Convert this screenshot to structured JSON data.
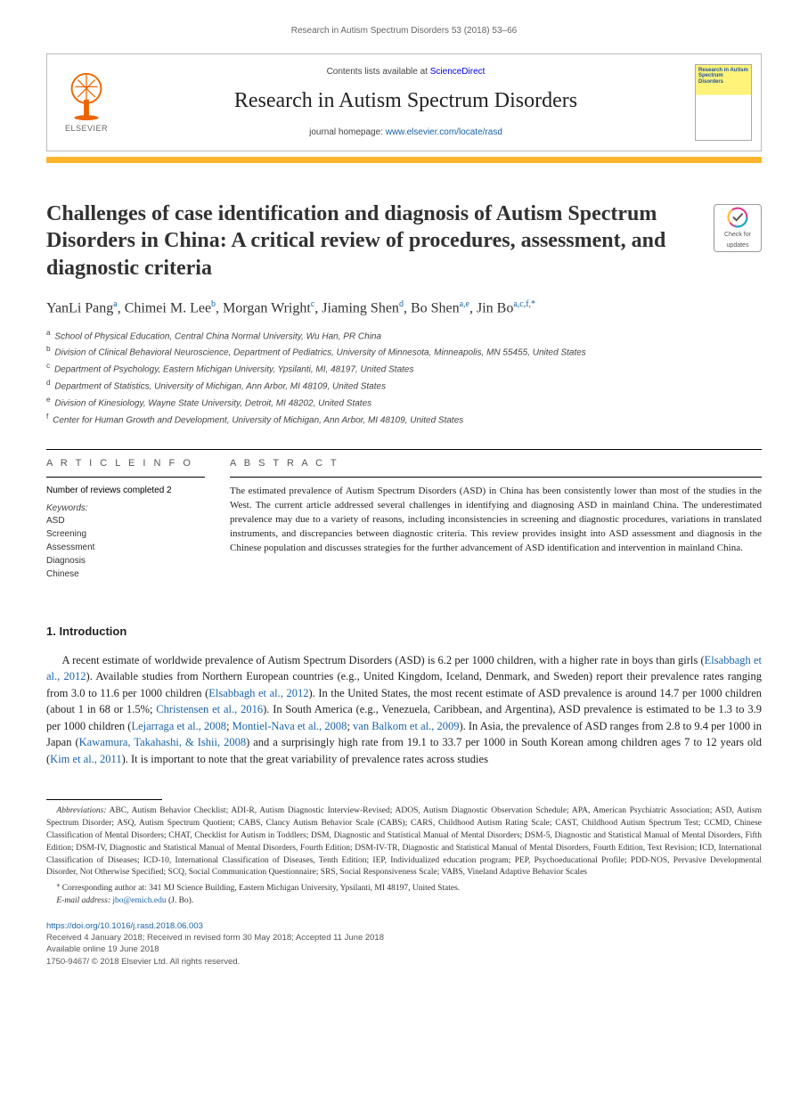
{
  "running_head": "Research in Autism Spectrum Disorders 53 (2018) 53–66",
  "masthead": {
    "publisher": "ELSEVIER",
    "contents_prefix": "Contents lists available at ",
    "contents_link": "ScienceDirect",
    "journal_name": "Research in Autism Spectrum Disorders",
    "homepage_prefix": "journal homepage: ",
    "homepage_link": "www.elsevier.com/locate/rasd",
    "cover_title": "Research in Autism Spectrum Disorders",
    "accent_color": "#fbb52a",
    "logo_color": "#ec6500"
  },
  "crossmark": {
    "line1": "Check for",
    "line2": "updates"
  },
  "title": "Challenges of case identification and diagnosis of Autism Spectrum Disorders in China: A critical review of procedures, assessment, and diagnostic criteria",
  "authors_html": "YanLi Pang<sup>a</sup>, Chimei M. Lee<sup>b</sup>, Morgan Wright<sup>c</sup>, Jiaming Shen<sup>d</sup>, Bo Shen<sup>a,e</sup>, Jin Bo<sup>a,c,f,*</sup>",
  "affiliations": [
    {
      "key": "a",
      "text": "School of Physical Education, Central China Normal University, Wu Han, PR China"
    },
    {
      "key": "b",
      "text": "Division of Clinical Behavioral Neuroscience, Department of Pediatrics, University of Minnesota, Minneapolis, MN 55455, United States"
    },
    {
      "key": "c",
      "text": "Department of Psychology, Eastern Michigan University, Ypsilanti, MI, 48197, United States"
    },
    {
      "key": "d",
      "text": "Department of Statistics, University of Michigan, Ann Arbor, MI 48109, United States"
    },
    {
      "key": "e",
      "text": "Division of Kinesiology, Wayne State University, Detroit, MI 48202, United States"
    },
    {
      "key": "f",
      "text": "Center for Human Growth and Development, University of Michigan, Ann Arbor, MI 48109, United States"
    }
  ],
  "article_info": {
    "head": "A R T I C L E  I N F O",
    "reviews_line": "Number of reviews completed 2",
    "keywords_head": "Keywords:",
    "keywords": [
      "ASD",
      "Screening",
      "Assessment",
      "Diagnosis",
      "Chinese"
    ]
  },
  "abstract": {
    "head": "A B S T R A C T",
    "text": "The estimated prevalence of Autism Spectrum Disorders (ASD) in China has been consistently lower than most of the studies in the West. The current article addressed several challenges in identifying and diagnosing ASD in mainland China. The underestimated prevalence may due to a variety of reasons, including inconsistencies in screening and diagnostic procedures, variations in translated instruments, and discrepancies between diagnostic criteria. This review provides insight into ASD assessment and diagnosis in the Chinese population and discusses strategies for the further advancement of ASD identification and intervention in mainland China."
  },
  "section1_head": "1. Introduction",
  "intro_html": "A recent estimate of worldwide prevalence of Autism Spectrum Disorders (ASD) is 6.2 per 1000 children, with a higher rate in boys than girls (<span class='cite'>Elsabbagh et al., 2012</span>). Available studies from Northern European countries (e.g., United Kingdom, Iceland, Denmark, and Sweden) report their prevalence rates ranging from 3.0 to 11.6 per 1000 children (<span class='cite'>Elsabbagh et al., 2012</span>). In the United States, the most recent estimate of ASD prevalence is around 14.7 per 1000 children (about 1 in 68 or 1.5%; <span class='cite'>Christensen et al., 2016</span>). In South America (e.g., Venezuela, Caribbean, and Argentina), ASD prevalence is estimated to be 1.3 to 3.9 per 1000 children (<span class='cite'>Lejarraga et al., 2008</span>; <span class='cite'>Montiel-Nava et al., 2008</span>; <span class='cite'>van Balkom et al., 2009</span>). In Asia, the prevalence of ASD ranges from 2.8 to 9.4 per 1000 in Japan (<span class='cite'>Kawamura, Takahashi, & Ishii, 2008</span>) and a surprisingly high rate from 19.1 to 33.7 per 1000 in South Korean among children ages 7 to 12 years old (<span class='cite'>Kim et al., 2011</span>). It is important to note that the great variability of prevalence rates across studies",
  "footnotes": {
    "abbrev_label": "Abbreviations:",
    "abbrev_text": " ABC, Autism Behavior Checklist; ADI-R, Autism Diagnostic Interview-Revised; ADOS, Autism Diagnostic Observation Schedule; APA, American Psychiatric Association; ASD, Autism Spectrum Disorder; ASQ, Autism Spectrum Quotient; CABS, Clancy Autism Behavior Scale (CABS); CARS, Childhood Autism Rating Scale; CAST, Childhood Autism Spectrum Test; CCMD, Chinese Classification of Mental Disorders; CHAT, Checklist for Autism in Toddlers; DSM, Diagnostic and Statistical Manual of Mental Disorders; DSM-5, Diagnostic and Statistical Manual of Mental Disorders, Fifth Edition; DSM-IV, Diagnostic and Statistical Manual of Mental Disorders, Fourth Edition; DSM-IV-TR, Diagnostic and Statistical Manual of Mental Disorders, Fourth Edition, Text Revision; ICD, International Classification of Diseases; ICD-10, International Classification of Diseases, Tenth Edition; IEP, Individualized education program; PEP, Psychoeducational Profile; PDD-NOS, Pervasive Developmental Disorder, Not Otherwise Specified; SCQ, Social Communication Questionnaire; SRS, Social Responsiveness Scale; VABS, Vineland Adaptive Behavior Scales",
    "corr_symbol": "⁎",
    "corr_text": "Corresponding author at: 341 MJ Science Building, Eastern Michigan University, Ypsilanti, MI 48197, United States.",
    "email_label": "E-mail address:",
    "email": "jbo@emich.edu",
    "email_suffix": " (J. Bo)."
  },
  "doi": {
    "link": "https://doi.org/10.1016/j.rasd.2018.06.003",
    "received": "Received 4 January 2018; Received in revised form 30 May 2018; Accepted 11 June 2018",
    "online": "Available online 19 June 2018",
    "copyright": "1750-9467/ © 2018 Elsevier Ltd. All rights reserved."
  },
  "colors": {
    "link": "#1a63a9",
    "text": "#222222",
    "accent": "#fbb52a",
    "elsevier": "#ec6500"
  },
  "typography": {
    "title_fontsize": 24,
    "journal_fontsize": 24,
    "body_fontsize": 12.5,
    "abstract_fontsize": 11,
    "footnote_fontsize": 9.5
  }
}
